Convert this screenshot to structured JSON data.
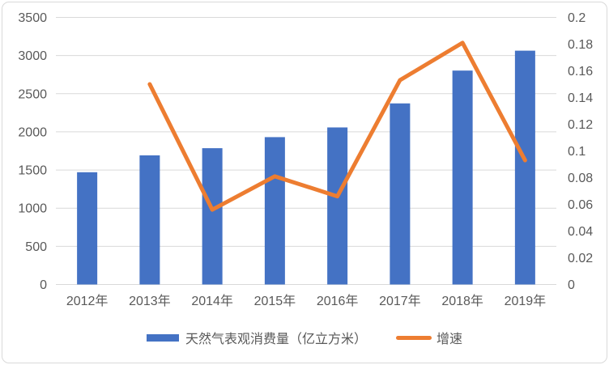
{
  "chart_data": {
    "type": "bar",
    "subtype": "combo-bar-line",
    "title": "",
    "categories": [
      "2012年",
      "2013年",
      "2014年",
      "2015年",
      "2016年",
      "2017年",
      "2018年",
      "2019年"
    ],
    "series": [
      {
        "name": "天然气表观消费量（亿立方米）",
        "type": "bar",
        "axis": "left",
        "color": "#4472C4",
        "values": [
          1471,
          1692,
          1786,
          1931,
          2058,
          2373,
          2803,
          3064
        ]
      },
      {
        "name": "增速",
        "type": "line",
        "axis": "right",
        "color": "#ED7D31",
        "values": [
          null,
          0.15,
          0.056,
          0.081,
          0.066,
          0.153,
          0.181,
          0.093
        ]
      }
    ],
    "left_axis": {
      "min": 0,
      "max": 3500,
      "step": 500
    },
    "right_axis": {
      "min": 0,
      "max": 0.2,
      "step": 0.02
    },
    "grid": true,
    "legend_position": "bottom",
    "colors": {
      "grid": "#D9D9D9",
      "axis_text": "#595959",
      "border": "#D9D9D9",
      "background": "#FFFFFF"
    }
  }
}
